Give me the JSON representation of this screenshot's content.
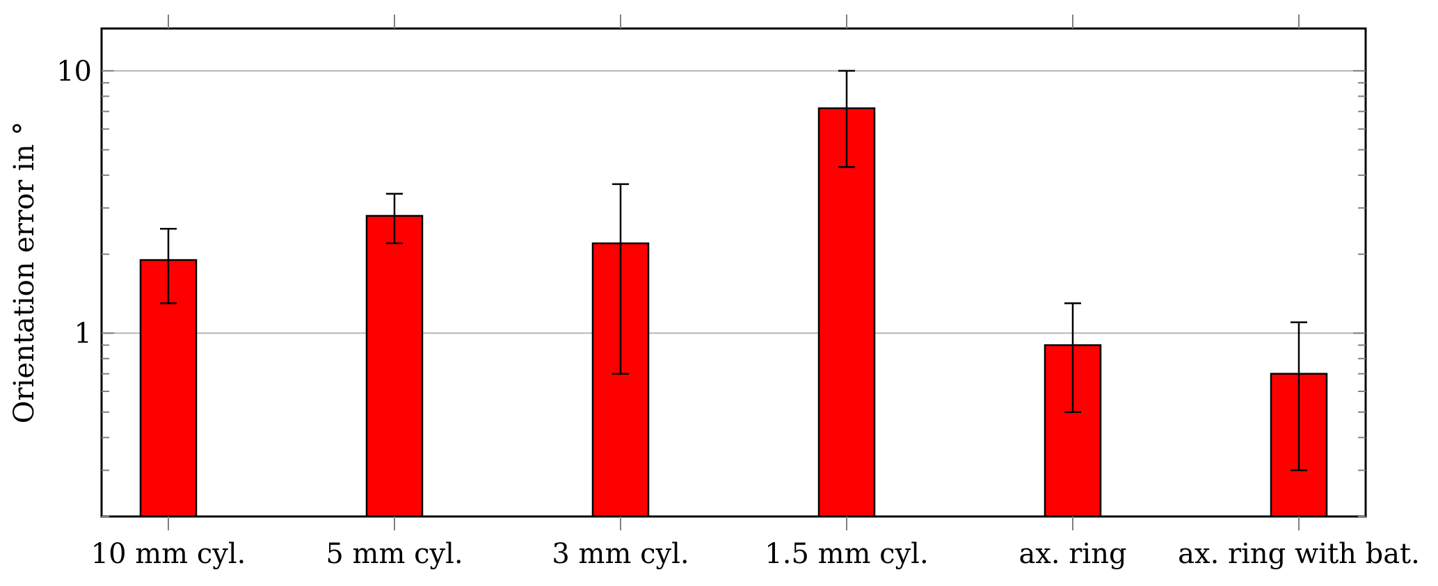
{
  "chart_data": {
    "type": "bar",
    "y_scale": "log",
    "ylabel": "Orientation error in °",
    "xlabel": "",
    "title": "",
    "ylim": [
      0.2,
      14.5
    ],
    "y_major_ticks": [
      {
        "value": 1,
        "label": "1"
      },
      {
        "value": 10,
        "label": "10"
      }
    ],
    "grid": "major horizontal",
    "bar_color": "#ff0000",
    "categories": [
      "10 mm cyl.",
      "5 mm cyl.",
      "3 mm cyl.",
      "1.5 mm cyl.",
      "ax. ring",
      "ax. ring with bat."
    ],
    "values": [
      1.9,
      2.8,
      2.2,
      7.2,
      0.9,
      0.7
    ],
    "error_low": [
      1.3,
      2.2,
      0.7,
      4.3,
      0.5,
      0.3
    ],
    "error_high": [
      2.5,
      3.4,
      3.7,
      10,
      1.3,
      1.1
    ]
  }
}
